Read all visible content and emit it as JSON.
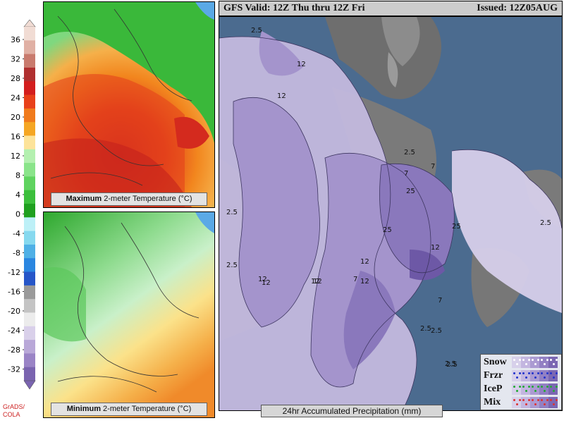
{
  "header": {
    "valid_text": "GFS Valid: 12Z Thu thru 12Z Fri",
    "issued_text": "Issued: 12Z05AUG"
  },
  "colorbar": {
    "ticks": [
      "36",
      "32",
      "28",
      "24",
      "20",
      "16",
      "12",
      "8",
      "4",
      "0",
      "-4",
      "-8",
      "-12",
      "-16",
      "-20",
      "-24",
      "-28",
      "-32"
    ],
    "colors": [
      "#f1dcd4",
      "#e0b0a4",
      "#c97b6e",
      "#b03030",
      "#d31e1e",
      "#e8401a",
      "#f07a1c",
      "#f5a623",
      "#fde39a",
      "#b4f0b0",
      "#8ae48a",
      "#5fd35f",
      "#3cbf3c",
      "#1fa01f",
      "#bdf0f7",
      "#86d9ef",
      "#4fb0e6",
      "#2a86e0",
      "#2656c8",
      "#9a9a9a",
      "#c4c4c4",
      "#ececec",
      "#d9d0ea",
      "#b9a8d8",
      "#9a84c6",
      "#7a64b0"
    ]
  },
  "credit": {
    "line1": "GrADS/",
    "line2": "COLA"
  },
  "panels": {
    "max": {
      "bold": "Maximum",
      "rest": " 2-meter Temperature (°C)"
    },
    "min": {
      "bold": "Minimum",
      "rest": " 2-meter Temperature (°C)"
    }
  },
  "precip": {
    "label": "24hr Accumulated Precipitation (mm)",
    "contour_labels": [
      "2.5",
      "12",
      "12",
      "2.5",
      "7",
      "7",
      "2.5",
      "12",
      "25",
      "25",
      "12",
      "12",
      "7",
      "12",
      "2.5",
      "2.5",
      "7",
      "12",
      "12",
      "2.5",
      "2.5",
      "2.5",
      "2.5",
      "25",
      "12"
    ]
  },
  "ptype_legend": {
    "items": [
      {
        "label": "Snow",
        "color": "#ffffff"
      },
      {
        "label": "Frzr",
        "color": "#2233cc"
      },
      {
        "label": "IceP",
        "color": "#22aa33"
      },
      {
        "label": "Mix",
        "color": "#dd3333"
      }
    ],
    "dot_shades": [
      "#d7d0ea",
      "#c3b6e0",
      "#ab9bd2",
      "#9280c3",
      "#7b67b2"
    ]
  },
  "chart_data": {
    "type": "heatmap",
    "title": "GFS Valid: 12Z Thu thru 12Z Fri",
    "subtitle": "Issued: 12Z05AUG",
    "panels": [
      {
        "name": "Maximum 2-meter Temperature (°C)",
        "units": "°C"
      },
      {
        "name": "Minimum 2-meter Temperature (°C)",
        "units": "°C"
      },
      {
        "name": "24hr Accumulated Precipitation (mm)",
        "units": "mm",
        "contour_levels": [
          2.5,
          7,
          12,
          25
        ]
      }
    ],
    "colorbar_ticks": [
      36,
      32,
      28,
      24,
      20,
      16,
      12,
      8,
      4,
      0,
      -4,
      -8,
      -12,
      -16,
      -20,
      -24,
      -28,
      -32
    ],
    "precip_types": [
      "Snow",
      "Frzr",
      "IceP",
      "Mix"
    ]
  }
}
